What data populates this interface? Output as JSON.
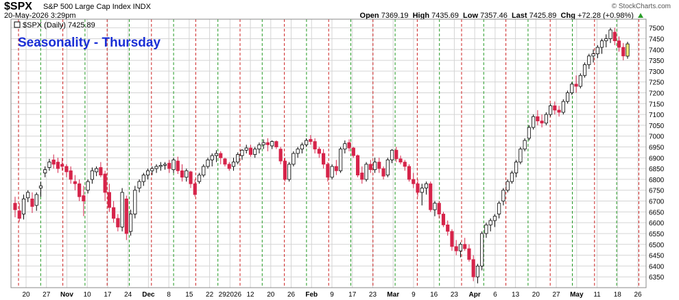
{
  "header": {
    "symbol": "$SPX",
    "description": "S&P 500 Large Cap Index INDX",
    "date": "20-May-2026 3:29pm",
    "brand": "© StockCharts.com",
    "open_label": "Open",
    "open": "7369.19",
    "high_label": "High",
    "high": "7435.69",
    "low_label": "Low",
    "low": "7357.46",
    "last_label": "Last",
    "last": "7425.89",
    "chg_label": "Chg",
    "chg": "+72.28 (+0.98%)"
  },
  "chart_data": {
    "type": "candlestick",
    "legend": "$SPX (Daily) 7425.89",
    "annotation": "Seasonality - Thursday",
    "ylim": [
      6300,
      7540
    ],
    "y_ticks": [
      6350,
      6400,
      6450,
      6500,
      6550,
      6600,
      6650,
      6700,
      6750,
      6800,
      6850,
      6900,
      6950,
      7000,
      7050,
      7100,
      7150,
      7200,
      7250,
      7300,
      7350,
      7400,
      7450,
      7500
    ],
    "x_ticks": [
      "20",
      "27",
      "Nov",
      "10",
      "17",
      "24",
      "Dec",
      "8",
      "15",
      "22",
      "292026",
      "12",
      "20",
      "26",
      "Feb",
      "9",
      "17",
      "23",
      "Mar",
      "9",
      "16",
      "23",
      "Apr",
      "6",
      "13",
      "20",
      "27",
      "May",
      "11",
      "18",
      "26"
    ],
    "thursday_marker_colors": [
      "red",
      "green"
    ],
    "colors": {
      "up": "#ffffff",
      "down": "#d6244a",
      "outline": "#000000",
      "last": "#f7f07a",
      "grid": "#d4d4d4",
      "red_line": "#cc2222",
      "green_line": "#229922"
    },
    "candles": [
      [
        6690,
        6720,
        6625,
        6660
      ],
      [
        6655,
        6690,
        6605,
        6620
      ],
      [
        6640,
        6730,
        6615,
        6710
      ],
      [
        6715,
        6750,
        6695,
        6740
      ],
      [
        6710,
        6740,
        6645,
        6675
      ],
      [
        6680,
        6740,
        6655,
        6730
      ],
      [
        6760,
        6790,
        6720,
        6770
      ],
      [
        6830,
        6860,
        6810,
        6845
      ],
      [
        6855,
        6895,
        6840,
        6880
      ],
      [
        6890,
        6915,
        6850,
        6870
      ],
      [
        6880,
        6900,
        6830,
        6850
      ],
      [
        6870,
        6900,
        6840,
        6860
      ],
      [
        6860,
        6870,
        6810,
        6835
      ],
      [
        6840,
        6860,
        6780,
        6800
      ],
      [
        6790,
        6820,
        6750,
        6780
      ],
      [
        6780,
        6800,
        6700,
        6720
      ],
      [
        6725,
        6770,
        6630,
        6700
      ],
      [
        6750,
        6800,
        6735,
        6790
      ],
      [
        6800,
        6855,
        6780,
        6840
      ],
      [
        6835,
        6860,
        6815,
        6850
      ],
      [
        6855,
        6880,
        6810,
        6820
      ],
      [
        6825,
        6840,
        6700,
        6740
      ],
      [
        6740,
        6780,
        6650,
        6670
      ],
      [
        6670,
        6700,
        6600,
        6620
      ],
      [
        6620,
        6640,
        6560,
        6580
      ],
      [
        6580,
        6760,
        6560,
        6740
      ],
      [
        6710,
        6725,
        6520,
        6550
      ],
      [
        6560,
        6660,
        6540,
        6640
      ],
      [
        6640,
        6770,
        6620,
        6750
      ],
      [
        6760,
        6800,
        6740,
        6790
      ],
      [
        6790,
        6830,
        6770,
        6820
      ],
      [
        6820,
        6850,
        6800,
        6840
      ],
      [
        6840,
        6860,
        6820,
        6850
      ],
      [
        6850,
        6870,
        6830,
        6860
      ],
      [
        6860,
        6880,
        6840,
        6865
      ],
      [
        6865,
        6880,
        6845,
        6870
      ],
      [
        6875,
        6890,
        6830,
        6850
      ],
      [
        6845,
        6900,
        6830,
        6890
      ],
      [
        6885,
        6905,
        6825,
        6840
      ],
      [
        6840,
        6870,
        6790,
        6810
      ],
      [
        6810,
        6850,
        6790,
        6840
      ],
      [
        6835,
        6840,
        6760,
        6780
      ],
      [
        6780,
        6800,
        6720,
        6730
      ],
      [
        6790,
        6830,
        6780,
        6820
      ],
      [
        6820,
        6870,
        6810,
        6860
      ],
      [
        6860,
        6900,
        6850,
        6890
      ],
      [
        6890,
        6920,
        6860,
        6910
      ],
      [
        6910,
        6935,
        6880,
        6920
      ],
      [
        6920,
        6930,
        6870,
        6900
      ],
      [
        6895,
        6900,
        6860,
        6870
      ],
      [
        6870,
        6880,
        6840,
        6850
      ],
      [
        6860,
        6900,
        6840,
        6880
      ],
      [
        6880,
        6925,
        6870,
        6915
      ],
      [
        6910,
        6940,
        6890,
        6935
      ],
      [
        6935,
        6960,
        6920,
        6945
      ],
      [
        6945,
        6960,
        6905,
        6915
      ],
      [
        6915,
        6950,
        6900,
        6940
      ],
      [
        6940,
        6970,
        6920,
        6960
      ],
      [
        6960,
        6985,
        6940,
        6970
      ],
      [
        6970,
        6990,
        6930,
        6960
      ],
      [
        6955,
        6980,
        6940,
        6975
      ],
      [
        6975,
        6980,
        6940,
        6950
      ],
      [
        6940,
        6950,
        6870,
        6885
      ],
      [
        6885,
        6900,
        6790,
        6800
      ],
      [
        6800,
        6880,
        6790,
        6870
      ],
      [
        6870,
        6930,
        6860,
        6920
      ],
      [
        6920,
        6950,
        6900,
        6940
      ],
      [
        6940,
        6970,
        6920,
        6960
      ],
      [
        6960,
        6990,
        6950,
        6980
      ],
      [
        6985,
        7005,
        6960,
        6975
      ],
      [
        6975,
        6990,
        6920,
        6940
      ],
      [
        6940,
        6950,
        6900,
        6920
      ],
      [
        6920,
        6940,
        6850,
        6870
      ],
      [
        6870,
        6880,
        6790,
        6810
      ],
      [
        6810,
        6870,
        6800,
        6860
      ],
      [
        6860,
        6890,
        6820,
        6840
      ],
      [
        6840,
        6950,
        6830,
        6940
      ],
      [
        6940,
        6980,
        6920,
        6965
      ],
      [
        6970,
        6985,
        6930,
        6945
      ],
      [
        6945,
        6950,
        6900,
        6910
      ],
      [
        6910,
        6915,
        6810,
        6820
      ],
      [
        6830,
        6860,
        6780,
        6800
      ],
      [
        6800,
        6880,
        6790,
        6870
      ],
      [
        6870,
        6890,
        6830,
        6845
      ],
      [
        6845,
        6900,
        6830,
        6880
      ],
      [
        6880,
        6900,
        6830,
        6850
      ],
      [
        6850,
        6860,
        6800,
        6815
      ],
      [
        6820,
        6900,
        6810,
        6890
      ],
      [
        6890,
        6940,
        6875,
        6935
      ],
      [
        6935,
        6950,
        6880,
        6895
      ],
      [
        6895,
        6910,
        6870,
        6880
      ],
      [
        6880,
        6890,
        6840,
        6860
      ],
      [
        6860,
        6870,
        6790,
        6800
      ],
      [
        6800,
        6830,
        6760,
        6780
      ],
      [
        6780,
        6800,
        6720,
        6740
      ],
      [
        6740,
        6780,
        6680,
        6760
      ],
      [
        6760,
        6790,
        6730,
        6780
      ],
      [
        6780,
        6790,
        6650,
        6660
      ],
      [
        6660,
        6700,
        6630,
        6690
      ],
      [
        6690,
        6700,
        6620,
        6640
      ],
      [
        6640,
        6650,
        6580,
        6590
      ],
      [
        6590,
        6610,
        6540,
        6560
      ],
      [
        6560,
        6570,
        6470,
        6490
      ],
      [
        6490,
        6520,
        6450,
        6470
      ],
      [
        6470,
        6510,
        6440,
        6500
      ],
      [
        6500,
        6530,
        6470,
        6480
      ],
      [
        6480,
        6500,
        6420,
        6430
      ],
      [
        6430,
        6450,
        6330,
        6350
      ],
      [
        6350,
        6410,
        6320,
        6400
      ],
      [
        6400,
        6560,
        6380,
        6550
      ],
      [
        6550,
        6600,
        6530,
        6590
      ],
      [
        6590,
        6620,
        6560,
        6610
      ],
      [
        6610,
        6640,
        6580,
        6630
      ],
      [
        6640,
        6700,
        6620,
        6690
      ],
      [
        6700,
        6760,
        6680,
        6750
      ],
      [
        6750,
        6800,
        6740,
        6790
      ],
      [
        6790,
        6840,
        6780,
        6830
      ],
      [
        6830,
        6890,
        6810,
        6880
      ],
      [
        6880,
        6950,
        6870,
        6940
      ],
      [
        6940,
        6990,
        6930,
        6980
      ],
      [
        6990,
        7050,
        6980,
        7040
      ],
      [
        7040,
        7100,
        7030,
        7090
      ],
      [
        7090,
        7120,
        7050,
        7070
      ],
      [
        7070,
        7100,
        7040,
        7060
      ],
      [
        7060,
        7110,
        7050,
        7100
      ],
      [
        7100,
        7150,
        7090,
        7140
      ],
      [
        7140,
        7160,
        7100,
        7120
      ],
      [
        7120,
        7140,
        7090,
        7110
      ],
      [
        7110,
        7170,
        7100,
        7160
      ],
      [
        7160,
        7210,
        7150,
        7200
      ],
      [
        7200,
        7250,
        7190,
        7240
      ],
      [
        7240,
        7280,
        7200,
        7230
      ],
      [
        7230,
        7290,
        7220,
        7280
      ],
      [
        7280,
        7340,
        7270,
        7330
      ],
      [
        7330,
        7380,
        7310,
        7370
      ],
      [
        7370,
        7400,
        7340,
        7380
      ],
      [
        7380,
        7420,
        7360,
        7410
      ],
      [
        7410,
        7450,
        7380,
        7440
      ],
      [
        7440,
        7470,
        7410,
        7450
      ],
      [
        7450,
        7500,
        7430,
        7490
      ],
      [
        7480,
        7500,
        7420,
        7440
      ],
      [
        7440,
        7460,
        7390,
        7410
      ],
      [
        7410,
        7430,
        7350,
        7370
      ],
      [
        7369.19,
        7435.69,
        7357.46,
        7425.89
      ]
    ]
  }
}
